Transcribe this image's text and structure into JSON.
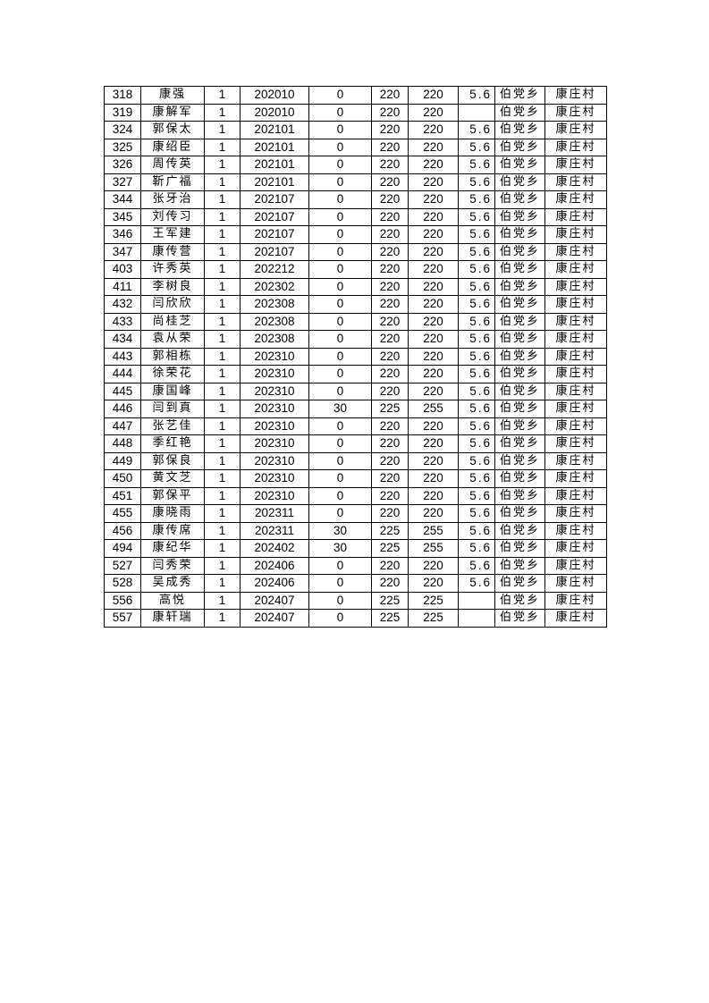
{
  "table": {
    "rows": [
      [
        "318",
        "康强",
        "1",
        "202010",
        "0",
        "220",
        "220",
        "5.6",
        "伯党乡",
        "康庄村"
      ],
      [
        "319",
        "康解军",
        "1",
        "202010",
        "0",
        "220",
        "220",
        "",
        "伯党乡",
        "康庄村"
      ],
      [
        "324",
        "郭保太",
        "1",
        "202101",
        "0",
        "220",
        "220",
        "5.6",
        "伯党乡",
        "康庄村"
      ],
      [
        "325",
        "康绍臣",
        "1",
        "202101",
        "0",
        "220",
        "220",
        "5.6",
        "伯党乡",
        "康庄村"
      ],
      [
        "326",
        "周传英",
        "1",
        "202101",
        "0",
        "220",
        "220",
        "5.6",
        "伯党乡",
        "康庄村"
      ],
      [
        "327",
        "靳广福",
        "1",
        "202101",
        "0",
        "220",
        "220",
        "5.6",
        "伯党乡",
        "康庄村"
      ],
      [
        "344",
        "张牙治",
        "1",
        "202107",
        "0",
        "220",
        "220",
        "5.6",
        "伯党乡",
        "康庄村"
      ],
      [
        "345",
        "刘传习",
        "1",
        "202107",
        "0",
        "220",
        "220",
        "5.6",
        "伯党乡",
        "康庄村"
      ],
      [
        "346",
        "王军建",
        "1",
        "202107",
        "0",
        "220",
        "220",
        "5.6",
        "伯党乡",
        "康庄村"
      ],
      [
        "347",
        "康传营",
        "1",
        "202107",
        "0",
        "220",
        "220",
        "5.6",
        "伯党乡",
        "康庄村"
      ],
      [
        "403",
        "许秀英",
        "1",
        "202212",
        "0",
        "220",
        "220",
        "5.6",
        "伯党乡",
        "康庄村"
      ],
      [
        "411",
        "李树良",
        "1",
        "202302",
        "0",
        "220",
        "220",
        "5.6",
        "伯党乡",
        "康庄村"
      ],
      [
        "432",
        "闫欣欣",
        "1",
        "202308",
        "0",
        "220",
        "220",
        "5.6",
        "伯党乡",
        "康庄村"
      ],
      [
        "433",
        "尚桂芝",
        "1",
        "202308",
        "0",
        "220",
        "220",
        "5.6",
        "伯党乡",
        "康庄村"
      ],
      [
        "434",
        "袁从荣",
        "1",
        "202308",
        "0",
        "220",
        "220",
        "5.6",
        "伯党乡",
        "康庄村"
      ],
      [
        "443",
        "郭相栋",
        "1",
        "202310",
        "0",
        "220",
        "220",
        "5.6",
        "伯党乡",
        "康庄村"
      ],
      [
        "444",
        "徐荣花",
        "1",
        "202310",
        "0",
        "220",
        "220",
        "5.6",
        "伯党乡",
        "康庄村"
      ],
      [
        "445",
        "康国峰",
        "1",
        "202310",
        "0",
        "220",
        "220",
        "5.6",
        "伯党乡",
        "康庄村"
      ],
      [
        "446",
        "闫到真",
        "1",
        "202310",
        "30",
        "225",
        "255",
        "5.6",
        "伯党乡",
        "康庄村"
      ],
      [
        "447",
        "张艺佳",
        "1",
        "202310",
        "0",
        "220",
        "220",
        "5.6",
        "伯党乡",
        "康庄村"
      ],
      [
        "448",
        "季红艳",
        "1",
        "202310",
        "0",
        "220",
        "220",
        "5.6",
        "伯党乡",
        "康庄村"
      ],
      [
        "449",
        "郭保良",
        "1",
        "202310",
        "0",
        "220",
        "220",
        "5.6",
        "伯党乡",
        "康庄村"
      ],
      [
        "450",
        "黄文芝",
        "1",
        "202310",
        "0",
        "220",
        "220",
        "5.6",
        "伯党乡",
        "康庄村"
      ],
      [
        "451",
        "郭保平",
        "1",
        "202310",
        "0",
        "220",
        "220",
        "5.6",
        "伯党乡",
        "康庄村"
      ],
      [
        "455",
        "康晓雨",
        "1",
        "202311",
        "0",
        "220",
        "220",
        "5.6",
        "伯党乡",
        "康庄村"
      ],
      [
        "456",
        "康传席",
        "1",
        "202311",
        "30",
        "225",
        "255",
        "5.6",
        "伯党乡",
        "康庄村"
      ],
      [
        "494",
        "康纪华",
        "1",
        "202402",
        "30",
        "225",
        "255",
        "5.6",
        "伯党乡",
        "康庄村"
      ],
      [
        "527",
        "闫秀荣",
        "1",
        "202406",
        "0",
        "220",
        "220",
        "5.6",
        "伯党乡",
        "康庄村"
      ],
      [
        "528",
        "吴成秀",
        "1",
        "202406",
        "0",
        "220",
        "220",
        "5.6",
        "伯党乡",
        "康庄村"
      ],
      [
        "556",
        "高悦",
        "1",
        "202407",
        "0",
        "225",
        "225",
        "",
        "伯党乡",
        "康庄村"
      ],
      [
        "557",
        "康轩瑞",
        "1",
        "202407",
        "0",
        "225",
        "225",
        "",
        "伯党乡",
        "康庄村"
      ]
    ]
  }
}
